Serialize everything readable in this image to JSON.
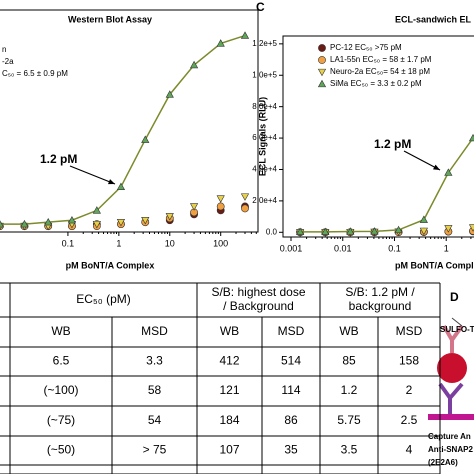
{
  "panel_labels": [
    "C",
    "D"
  ],
  "chart_data": [
    {
      "type": "scatter",
      "title": "Western Blot Assay",
      "x_label": "pM BoNT/A Complex",
      "log_x": true,
      "x": [
        0.0046,
        0.014,
        0.041,
        0.12,
        0.37,
        1.1,
        3.3,
        10,
        30,
        100,
        300
      ],
      "xlim": [
        0.00076,
        540
      ],
      "xticks": [
        0.1,
        1,
        10,
        100
      ],
      "ylim": [
        -0.03,
        1.1
      ],
      "series": [
        {
          "color": "#6b1a14",
          "marker": "circle",
          "values": [
            0,
            0,
            0,
            0,
            0.01,
            0.01,
            0.02,
            0.03,
            0.06,
            0.08,
            0.1
          ]
        },
        {
          "name": "n",
          "color": "#f0a040",
          "marker": "circle",
          "values": [
            0,
            0,
            0,
            0,
            0,
            0.01,
            0.02,
            0.04,
            0.07,
            0.1,
            0.09
          ]
        },
        {
          "name": "-2a",
          "color": "#e8d04a",
          "marker": "triangle-down",
          "values": [
            0,
            0,
            0,
            0.01,
            0.01,
            0.02,
            0.03,
            0.05,
            0.1,
            0.14,
            0.15
          ]
        },
        {
          "name": "C₅₀ = 6.5 ± 0.9 pM",
          "color": "#5fa55a",
          "marker": "triangle-up",
          "fit_color": "#7c8a2a",
          "values": [
            0.01,
            0.01,
            0.02,
            0.03,
            0.08,
            0.2,
            0.44,
            0.67,
            0.82,
            0.93,
            0.97
          ]
        }
      ],
      "annotation": "1.2 pM"
    },
    {
      "type": "scatter",
      "title": "ECL-sandwich EL",
      "x_label": "pM BoNT/A Compl",
      "y_label": "ECL Signals (RLU)",
      "log_x": true,
      "x": [
        0.0015,
        0.0046,
        0.014,
        0.041,
        0.12,
        0.37,
        1.1,
        3.3
      ],
      "xlim": [
        0.0007,
        65
      ],
      "xticks": [
        0.001,
        0.01,
        0.1,
        1
      ],
      "ylim": [
        -3000,
        125000
      ],
      "yticks": [
        {
          "value": 0,
          "label": "0.0"
        },
        {
          "value": 20000,
          "label": "2.0e+4"
        },
        {
          "value": 40000,
          "label": "4.0e+4"
        },
        {
          "value": 60000,
          "label": "6.0e+4"
        },
        {
          "value": 80000,
          "label": "8.0e+4"
        },
        {
          "value": 100000,
          "label": "1.0e+5"
        },
        {
          "value": 120000,
          "label": "1.2e+5"
        }
      ],
      "series": [
        {
          "name": "PC-12 EC₅₀ >75 pM",
          "color": "#6b1a14",
          "marker": "circle",
          "values": [
            0,
            0,
            0,
            0,
            100,
            200,
            400,
            600
          ]
        },
        {
          "name": "LA1-55n EC₅₀ = 58 ± 1.7 pM",
          "color": "#f0a040",
          "marker": "circle",
          "values": [
            0,
            0,
            0,
            100,
            100,
            300,
            500,
            900
          ]
        },
        {
          "name": "Neuro-2a EC₅₀= 54 ± 18 pM",
          "color": "#e8d04a",
          "marker": "triangle-down",
          "values": [
            0,
            0,
            100,
            200,
            400,
            900,
            2500,
            3000
          ]
        },
        {
          "name": "SiMa EC₅₀ = 3.3 ± 0.2 pM",
          "color": "#5fa55a",
          "marker": "triangle-up",
          "fit_color": "#7c8a2a",
          "values": [
            300,
            300,
            500,
            600,
            1500,
            8000,
            38000,
            60000
          ]
        }
      ],
      "annotation": "1.2 pM"
    }
  ],
  "table": {
    "groups": [
      [
        "EC₅₀ (pM)"
      ],
      [
        "S/B: highest dose",
        "/ Background"
      ],
      [
        "S/B: 1.2 pM /",
        "background"
      ]
    ],
    "subheaders": [
      "WB",
      "MSD",
      "WB",
      "MSD",
      "WB",
      "MSD"
    ],
    "rows": [
      [
        "6.5",
        "3.3",
        "412",
        "514",
        "85",
        "158"
      ],
      [
        "(~100)",
        "58",
        "121",
        "114",
        "1.2",
        "2"
      ],
      [
        "(~75)",
        "54",
        "184",
        "86",
        "5.75",
        "2.5"
      ],
      [
        "(~50)",
        "> 75",
        "107",
        "35",
        "3.5",
        "4"
      ]
    ]
  },
  "diagram": {
    "texts": [
      "SULFO-T",
      "Capture An",
      "Anti-SNAP2",
      "(2E2A6)"
    ]
  }
}
